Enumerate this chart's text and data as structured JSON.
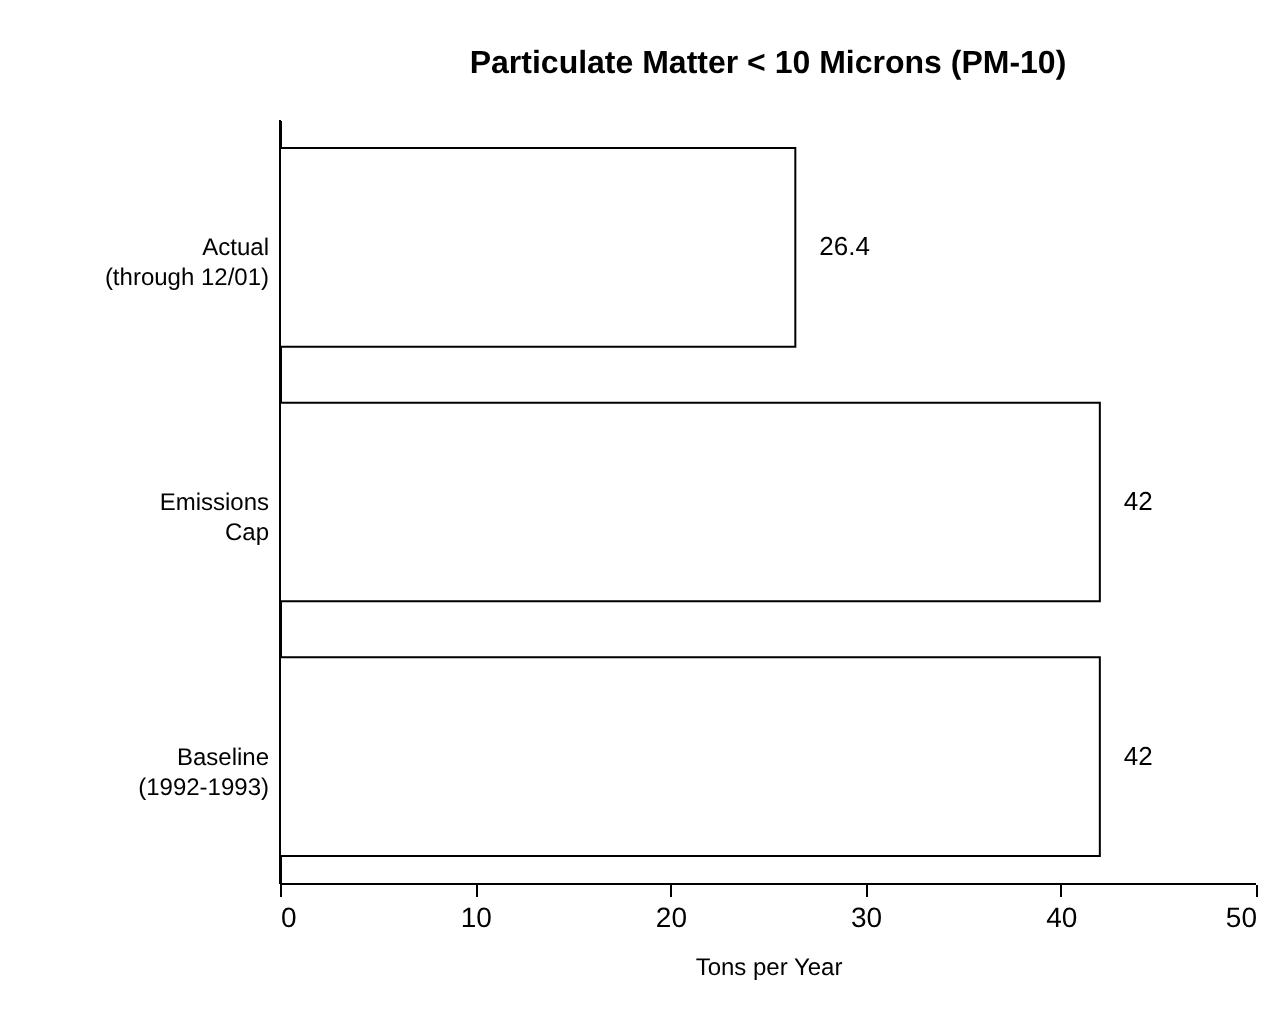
{
  "chart_data": {
    "type": "bar",
    "orientation": "horizontal",
    "title": "Particulate Matter < 10 Microns (PM-10)",
    "xlabel": "Tons per Year",
    "categories": [
      "Actual\n(through 12/01)",
      "Emissions\nCap",
      "Baseline\n(1992-1993)"
    ],
    "values": [
      26.4,
      42,
      42
    ],
    "color": "#ffffff",
    "xlim": [
      0,
      50
    ],
    "xticks": [
      0,
      10,
      20,
      30,
      40,
      50
    ],
    "data_labels": true,
    "grid": false
  }
}
